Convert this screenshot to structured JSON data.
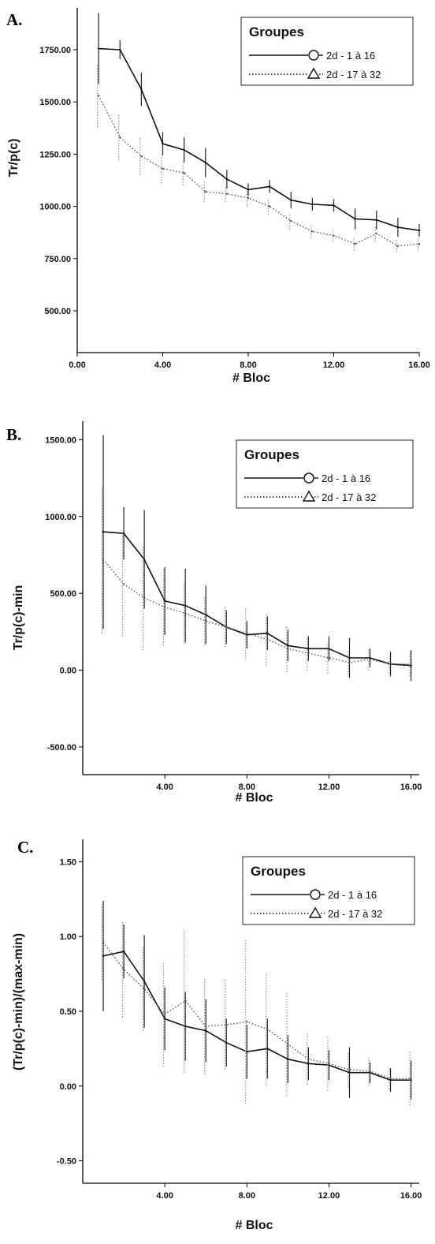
{
  "chart_data": [
    {
      "type": "line",
      "panel_label": "A.",
      "xlabel": "# Bloc",
      "ylabel": "Tr/p(c)",
      "xlim": [
        0,
        16
      ],
      "ylim": [
        300,
        1950
      ],
      "x_ticks": [
        "0.00",
        "4.00",
        "8.00",
        "12.00",
        "16.00"
      ],
      "x_tick_values": [
        0,
        4,
        8,
        12,
        16
      ],
      "y_ticks": [
        "500.00",
        "750.00",
        "1000.00",
        "1250.00",
        "1500.00",
        "1750.00"
      ],
      "y_tick_values": [
        500,
        750,
        1000,
        1250,
        1500,
        1750
      ],
      "legend": {
        "title": "Groupes",
        "position": "top-right"
      },
      "x": [
        1,
        2,
        3,
        4,
        5,
        6,
        7,
        8,
        9,
        10,
        11,
        12,
        13,
        14,
        15,
        16
      ],
      "series": [
        {
          "name": "2d - 1 à 16",
          "style": "solid",
          "marker": "circle",
          "values": [
            1755,
            1750,
            1560,
            1300,
            1270,
            1210,
            1130,
            1080,
            1095,
            1030,
            1010,
            1005,
            940,
            935,
            900,
            885
          ],
          "err": [
            170,
            45,
            80,
            55,
            60,
            70,
            45,
            30,
            30,
            40,
            30,
            30,
            50,
            45,
            45,
            30
          ]
        },
        {
          "name": "2d - 17 à 32",
          "style": "dotted",
          "marker": "triangle",
          "values": [
            1530,
            1330,
            1240,
            1180,
            1160,
            1070,
            1060,
            1040,
            1000,
            930,
            880,
            860,
            820,
            870,
            810,
            820
          ],
          "err": [
            150,
            110,
            90,
            70,
            60,
            50,
            40,
            40,
            40,
            40,
            30,
            30,
            30,
            40,
            30,
            30
          ]
        }
      ]
    },
    {
      "type": "line",
      "panel_label": "B.",
      "xlabel": "# Bloc",
      "ylabel": "Tr/p(c)-min",
      "xlim": [
        0,
        16.4
      ],
      "ylim": [
        -680,
        1620
      ],
      "x_ticks": [
        "4.00",
        "8.00",
        "12.00",
        "16.00"
      ],
      "x_tick_values": [
        4,
        8,
        12,
        16
      ],
      "y_ticks": [
        "-500.00",
        "0.00",
        "500.00",
        "1000.00",
        "1500.00"
      ],
      "y_tick_values": [
        -500,
        0,
        500,
        1000,
        1500
      ],
      "legend": {
        "title": "Groupes",
        "position": "top-right"
      },
      "x": [
        1,
        2,
        3,
        4,
        5,
        6,
        7,
        8,
        9,
        10,
        11,
        12,
        13,
        14,
        15,
        16
      ],
      "series": [
        {
          "name": "2d - 1 à 16",
          "style": "solid",
          "marker": "circle",
          "values": [
            900,
            890,
            720,
            450,
            420,
            360,
            280,
            230,
            240,
            160,
            140,
            140,
            80,
            80,
            40,
            30
          ],
          "err": [
            630,
            170,
            320,
            220,
            240,
            190,
            110,
            90,
            110,
            100,
            80,
            80,
            130,
            60,
            80,
            100
          ]
        },
        {
          "name": "2d - 17 à 32",
          "style": "dotted",
          "marker": "triangle",
          "values": [
            720,
            560,
            470,
            410,
            370,
            320,
            280,
            240,
            200,
            140,
            110,
            80,
            50,
            70,
            40,
            40
          ],
          "err": [
            480,
            340,
            340,
            250,
            200,
            160,
            130,
            170,
            170,
            150,
            110,
            100,
            80,
            70,
            60,
            80
          ]
        }
      ]
    },
    {
      "type": "line",
      "panel_label": "C.",
      "xlabel": "# Bloc",
      "ylabel": "(Tr/p(c)-min)/(max-min)",
      "xlim": [
        0,
        16.4
      ],
      "ylim": [
        -0.65,
        1.65
      ],
      "x_ticks": [
        "4.00",
        "8.00",
        "12.00",
        "16.00"
      ],
      "x_tick_values": [
        4,
        8,
        12,
        16
      ],
      "y_ticks": [
        "-0.50",
        "0.00",
        "0.50",
        "1.00",
        "1.50"
      ],
      "y_tick_values": [
        -0.5,
        0,
        0.5,
        1.0,
        1.5
      ],
      "legend": {
        "title": "Groupes",
        "position": "top-right"
      },
      "x": [
        1,
        2,
        3,
        4,
        5,
        6,
        7,
        8,
        9,
        10,
        11,
        12,
        13,
        14,
        15,
        16
      ],
      "series": [
        {
          "name": "2d - 1 à 16",
          "style": "solid",
          "marker": "circle",
          "values": [
            0.87,
            0.9,
            0.7,
            0.45,
            0.4,
            0.37,
            0.29,
            0.23,
            0.25,
            0.18,
            0.15,
            0.14,
            0.09,
            0.09,
            0.04,
            0.04
          ],
          "err": [
            0.37,
            0.18,
            0.31,
            0.21,
            0.23,
            0.21,
            0.16,
            0.18,
            0.2,
            0.16,
            0.11,
            0.1,
            0.17,
            0.07,
            0.08,
            0.13
          ]
        },
        {
          "name": "2d - 17 à 32",
          "style": "dotted",
          "marker": "triangle",
          "values": [
            0.96,
            0.78,
            0.65,
            0.48,
            0.57,
            0.4,
            0.41,
            0.43,
            0.38,
            0.28,
            0.18,
            0.15,
            0.11,
            0.1,
            0.05,
            0.05
          ],
          "err": [
            0.25,
            0.32,
            0.28,
            0.35,
            0.48,
            0.32,
            0.3,
            0.55,
            0.38,
            0.35,
            0.17,
            0.18,
            0.12,
            0.1,
            0.07,
            0.18
          ]
        }
      ]
    }
  ]
}
